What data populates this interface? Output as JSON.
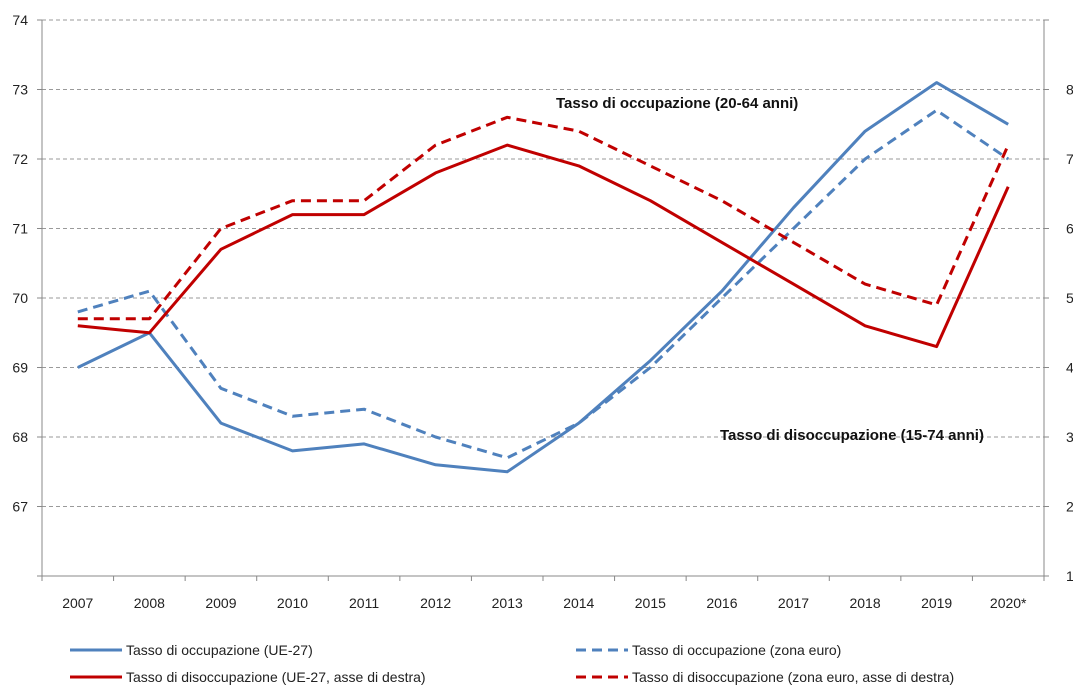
{
  "chart_data": {
    "type": "line",
    "categories": [
      "2007",
      "2008",
      "2009",
      "2010",
      "2011",
      "2012",
      "2013",
      "2014",
      "2015",
      "2016",
      "2017",
      "2018",
      "2019",
      "2020*"
    ],
    "left_axis": {
      "range": [
        66,
        74
      ],
      "ticks": [
        "67",
        "68",
        "69",
        "70",
        "71",
        "72",
        "73",
        "74"
      ]
    },
    "right_axis": {
      "range": [
        1,
        9
      ],
      "ticks": [
        "1",
        "2",
        "3",
        "4",
        "5",
        "6",
        "7",
        "8"
      ]
    },
    "grid": "horizontal-dashed",
    "legend_position": "bottom",
    "annotations": [
      {
        "id": "occ",
        "text": "Tasso di occupazione (20-64 anni)"
      },
      {
        "id": "dis",
        "text": "Tasso di disoccupazione (15-74 anni)"
      }
    ],
    "colors": {
      "blue": "#4f81bd",
      "red": "#c00000"
    },
    "series": [
      {
        "name": "Tasso di occupazione (UE-27)",
        "axis": "left",
        "color": "#4f81bd",
        "dash": false,
        "values": [
          69.0,
          69.5,
          68.2,
          67.8,
          67.9,
          67.6,
          67.5,
          68.2,
          69.1,
          70.1,
          71.3,
          72.4,
          73.1,
          72.5
        ]
      },
      {
        "name": "Tasso di occupazione (zona euro)",
        "axis": "left",
        "color": "#4f81bd",
        "dash": true,
        "values": [
          69.8,
          70.1,
          68.7,
          68.3,
          68.4,
          68.0,
          67.7,
          68.2,
          69.0,
          70.0,
          71.0,
          72.0,
          72.7,
          72.0
        ]
      },
      {
        "name": "Tasso di disoccupazione (UE-27, asse di destra)",
        "axis": "right",
        "color": "#c00000",
        "dash": false,
        "values": [
          4.6,
          4.5,
          5.7,
          6.2,
          6.2,
          6.8,
          7.2,
          6.9,
          6.4,
          5.8,
          5.2,
          4.6,
          4.3,
          6.6
        ]
      },
      {
        "name": "Tasso di disoccupazione (zona euro, asse di destra)",
        "axis": "right",
        "color": "#c00000",
        "dash": true,
        "values": [
          4.7,
          4.7,
          6.0,
          6.4,
          6.4,
          7.2,
          7.6,
          7.4,
          6.9,
          6.4,
          5.8,
          5.2,
          4.9,
          7.2
        ]
      }
    ]
  }
}
